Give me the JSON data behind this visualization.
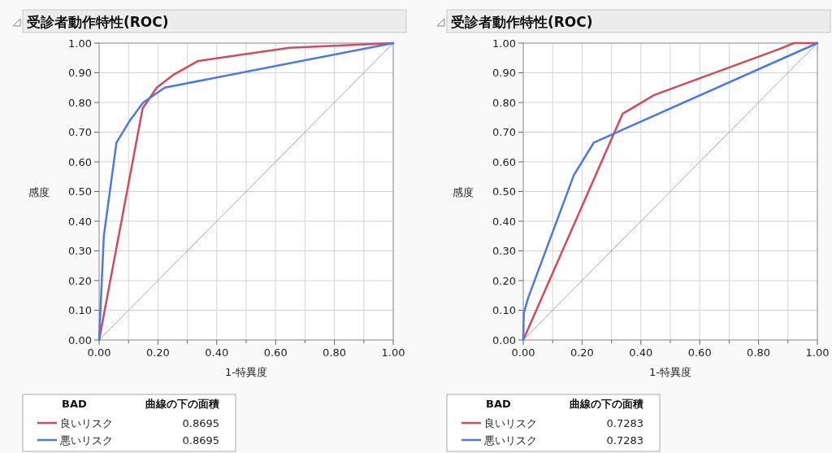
{
  "chart_data": [
    {
      "type": "line",
      "title": "受診者動作特性(ROC)",
      "xlabel": "1-特異度",
      "ylabel": "感度",
      "legend_title": "BAD",
      "legend": "bottom",
      "grid": true,
      "line_style": "solid",
      "marker": "none",
      "xlim": [
        0,
        1
      ],
      "ylim": [
        0,
        1
      ],
      "xticks": [
        {
          "value": 0,
          "label": "0.00"
        },
        {
          "value": 0.1,
          "label": null
        },
        {
          "value": 0.2,
          "label": "0.20"
        },
        {
          "value": 0.3,
          "label": null
        },
        {
          "value": 0.4,
          "label": "0.40"
        },
        {
          "value": 0.5,
          "label": null
        },
        {
          "value": 0.6,
          "label": "0.60"
        },
        {
          "value": 0.7,
          "label": null
        },
        {
          "value": 0.8,
          "label": "0.80"
        },
        {
          "value": 0.9,
          "label": null
        },
        {
          "value": 1,
          "label": "1.00"
        }
      ],
      "yticks": [
        {
          "value": 0,
          "label": "0.00"
        },
        {
          "value": 0.1,
          "label": "0.10"
        },
        {
          "value": 0.2,
          "label": "0.20"
        },
        {
          "value": 0.3,
          "label": "0.30"
        },
        {
          "value": 0.4,
          "label": "0.40"
        },
        {
          "value": 0.5,
          "label": "0.50"
        },
        {
          "value": 0.6,
          "label": "0.60"
        },
        {
          "value": 0.7,
          "label": "0.70"
        },
        {
          "value": 0.8,
          "label": "0.80"
        },
        {
          "value": 0.9,
          "label": "0.90"
        },
        {
          "value": 1,
          "label": "1.00"
        }
      ],
      "annotations": [
        "曲線の下の面積",
        "0.8695",
        "0.8695"
      ],
      "series": [
        {
          "color": "#aaaaaa",
          "x": [
            0,
            1
          ],
          "values": [
            0,
            1
          ]
        },
        {
          "name": "良いリスク",
          "color": "#d7485a",
          "x": [
            0,
            0.148,
            0.196,
            0.255,
            0.337,
            0.647,
            1
          ],
          "values": [
            0,
            0.78,
            0.85,
            0.895,
            0.94,
            0.984,
            1
          ]
        },
        {
          "name": "悪いリスク",
          "color": "#4c78e8",
          "x": [
            0,
            0.016,
            0.059,
            0.105,
            0.15,
            0.223,
            1
          ],
          "values": [
            0,
            0.35,
            0.665,
            0.74,
            0.8,
            0.85,
            1
          ]
        }
      ]
    },
    {
      "type": "line",
      "title": "受診者動作特性(ROC)",
      "xlabel": "1-特異度",
      "ylabel": "感度",
      "legend_title": "BAD",
      "legend": "bottom",
      "grid": true,
      "line_style": "solid",
      "marker": "none",
      "xlim": [
        0,
        1
      ],
      "ylim": [
        0,
        1
      ],
      "xticks": [
        {
          "value": 0,
          "label": "0.00"
        },
        {
          "value": 0.1,
          "label": null
        },
        {
          "value": 0.2,
          "label": "0.20"
        },
        {
          "value": 0.3,
          "label": null
        },
        {
          "value": 0.4,
          "label": "0.40"
        },
        {
          "value": 0.5,
          "label": null
        },
        {
          "value": 0.6,
          "label": "0.60"
        },
        {
          "value": 0.7,
          "label": null
        },
        {
          "value": 0.8,
          "label": "0.80"
        },
        {
          "value": 0.9,
          "label": null
        },
        {
          "value": 1,
          "label": "1.00"
        }
      ],
      "yticks": [
        {
          "value": 0,
          "label": "0.00"
        },
        {
          "value": 0.1,
          "label": "0.10"
        },
        {
          "value": 0.2,
          "label": "0.20"
        },
        {
          "value": 0.3,
          "label": "0.30"
        },
        {
          "value": 0.4,
          "label": "0.40"
        },
        {
          "value": 0.5,
          "label": "0.50"
        },
        {
          "value": 0.6,
          "label": "0.60"
        },
        {
          "value": 0.7,
          "label": "0.70"
        },
        {
          "value": 0.8,
          "label": "0.80"
        },
        {
          "value": 0.9,
          "label": "0.90"
        },
        {
          "value": 1,
          "label": "1.00"
        }
      ],
      "annotations": [
        "曲線の下の面積",
        "0.7283",
        "0.7283"
      ],
      "series": [
        {
          "color": "#aaaaaa",
          "x": [
            0,
            1
          ],
          "values": [
            0,
            1
          ]
        },
        {
          "name": "良いリスク",
          "color": "#d7485a",
          "x": [
            0,
            0.338,
            0.445,
            0.87,
            0.92,
            1
          ],
          "values": [
            0,
            0.762,
            0.825,
            0.98,
            1,
            1
          ]
        },
        {
          "name": "悪いリスク",
          "color": "#4c78e8",
          "x": [
            0,
            0.002,
            0.016,
            0.172,
            0.24,
            1
          ],
          "values": [
            0,
            0.09,
            0.14,
            0.555,
            0.665,
            1
          ]
        }
      ]
    }
  ]
}
